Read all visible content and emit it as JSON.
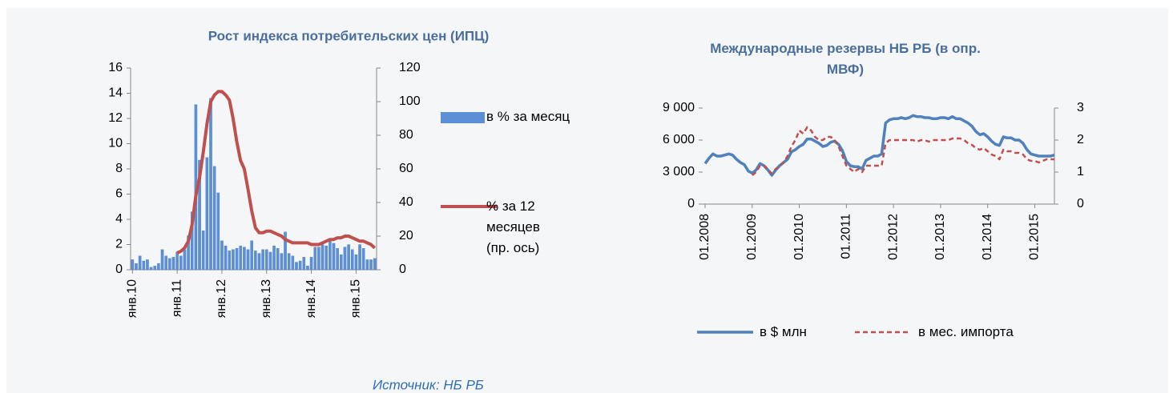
{
  "chart_data": [
    {
      "type": "bar",
      "title": "Рост индекса потребительских цен (ИПЦ)",
      "categories": [
        "янв.10",
        null,
        null,
        null,
        null,
        null,
        null,
        null,
        null,
        null,
        null,
        null,
        "янв.11",
        null,
        null,
        null,
        null,
        null,
        null,
        null,
        null,
        null,
        null,
        null,
        "янв.12",
        null,
        null,
        null,
        null,
        null,
        null,
        null,
        null,
        null,
        null,
        null,
        "янв.13",
        null,
        null,
        null,
        null,
        null,
        null,
        null,
        null,
        null,
        null,
        null,
        "янв.14",
        null,
        null,
        null,
        null,
        null,
        null,
        null,
        null,
        null,
        null,
        null,
        "янв.15",
        null,
        null,
        null,
        null,
        null
      ],
      "series": [
        {
          "name": "в % за месяц",
          "type": "bar",
          "color": "#5b8fd6",
          "values": [
            0.8,
            0.5,
            1.1,
            0.7,
            0.8,
            0.2,
            0.3,
            0.5,
            1.6,
            1.1,
            0.9,
            1.0,
            1.4,
            1.1,
            1.6,
            2.7,
            4.6,
            13.1,
            8.7,
            3.1,
            8.9,
            13.6,
            8.2,
            6.1,
            2.3,
            1.9,
            1.5,
            1.6,
            1.7,
            1.9,
            1.8,
            1.6,
            2.3,
            1.5,
            1.3,
            1.6,
            1.6,
            1.4,
            1.9,
            1.7,
            1.3,
            3.0,
            1.3,
            1.1,
            0.6,
            0.7,
            1.0,
            0.3,
            1.0,
            1.8,
            1.8,
            2.0,
            1.9,
            2.3,
            2.1,
            1.7,
            1.2,
            1.8,
            2.0,
            1.6,
            1.2,
            2.0,
            1.7,
            0.8,
            0.8,
            0.9
          ]
        },
        {
          "name": "% за 12 месяцев (пр. ось)",
          "type": "line",
          "axis": "y2",
          "color": "#c0504d",
          "values": [
            null,
            null,
            null,
            null,
            null,
            null,
            null,
            null,
            null,
            null,
            null,
            null,
            10,
            11,
            13,
            17,
            27,
            44,
            55,
            70,
            87,
            100,
            104,
            106,
            106,
            104,
            101,
            90,
            76,
            65,
            60,
            48,
            35,
            25,
            22,
            22,
            23,
            23,
            22,
            21,
            20,
            18,
            17,
            16,
            16,
            16,
            16,
            16,
            15,
            15,
            15,
            16,
            17,
            18,
            18,
            19,
            19,
            20,
            20,
            19,
            18,
            17,
            17,
            16,
            15,
            13
          ]
        }
      ],
      "ylim": [
        0,
        16
      ],
      "yticks": [
        0,
        2,
        4,
        6,
        8,
        10,
        12,
        14,
        16
      ],
      "y2lim": [
        0,
        120
      ],
      "y2ticks": [
        0,
        20,
        40,
        60,
        80,
        100,
        120
      ],
      "legend": "right"
    },
    {
      "type": "line",
      "title": "Международные резервы НБ РБ (в опр. МВФ)",
      "categories": [
        "01.2008",
        null,
        null,
        null,
        null,
        null,
        null,
        null,
        null,
        null,
        null,
        null,
        "01.2009",
        null,
        null,
        null,
        null,
        null,
        null,
        null,
        null,
        null,
        null,
        null,
        "01.2010",
        null,
        null,
        null,
        null,
        null,
        null,
        null,
        null,
        null,
        null,
        null,
        "01.2011",
        null,
        null,
        null,
        null,
        null,
        null,
        null,
        null,
        null,
        null,
        null,
        "01.2012",
        null,
        null,
        null,
        null,
        null,
        null,
        null,
        null,
        null,
        null,
        null,
        "01.2013",
        null,
        null,
        null,
        null,
        null,
        null,
        null,
        null,
        null,
        null,
        null,
        "01.2014",
        null,
        null,
        null,
        null,
        null,
        null,
        null,
        null,
        null,
        null,
        null,
        "01.2015",
        null,
        null,
        null,
        null,
        null
      ],
      "series": [
        {
          "name": "в $ млн",
          "color": "#4f81bd",
          "values": [
            3800,
            4300,
            4700,
            4500,
            4500,
            4600,
            4700,
            4600,
            4200,
            3900,
            3700,
            3100,
            2900,
            3200,
            3800,
            3600,
            3200,
            2700,
            3200,
            3600,
            3900,
            4200,
            4900,
            5100,
            5400,
            5600,
            6100,
            6100,
            5900,
            5700,
            5400,
            5500,
            5800,
            5900,
            5600,
            5000,
            4000,
            3600,
            3500,
            3500,
            3300,
            4100,
            4300,
            4500,
            4500,
            4700,
            7600,
            7900,
            8000,
            8000,
            8100,
            8000,
            8100,
            8300,
            8200,
            8200,
            8100,
            8100,
            8000,
            8000,
            8100,
            8100,
            8000,
            8200,
            8000,
            8000,
            7800,
            7600,
            7300,
            6800,
            6500,
            6600,
            6300,
            5900,
            5600,
            5500,
            6300,
            6200,
            6200,
            6000,
            6000,
            5700,
            5100,
            4700,
            4600,
            4500,
            4500,
            4500,
            4500,
            4600
          ]
        },
        {
          "name": "в мес. импорта",
          "color": "#c0504d",
          "dashed": true,
          "axis": "y2",
          "values": [
            null,
            null,
            null,
            null,
            null,
            null,
            null,
            null,
            null,
            null,
            null,
            null,
            0.9,
            1.0,
            1.2,
            1.2,
            1.1,
            0.95,
            1.1,
            1.2,
            1.3,
            1.5,
            1.8,
            2.0,
            2.3,
            2.2,
            2.4,
            2.3,
            2.1,
            2.0,
            2.0,
            2.1,
            2.1,
            2.0,
            1.8,
            1.5,
            1.2,
            1.1,
            1.0,
            1.1,
            1.0,
            1.2,
            1.2,
            1.2,
            1.2,
            1.2,
            1.9,
            2.0,
            2.0,
            2.0,
            2.0,
            2.0,
            2.0,
            2.0,
            1.95,
            2.0,
            2.0,
            1.95,
            2.0,
            2.0,
            2.0,
            2.0,
            2.0,
            2.05,
            2.05,
            2.05,
            2.0,
            1.9,
            1.85,
            1.75,
            1.7,
            1.75,
            1.65,
            1.55,
            1.5,
            1.4,
            1.7,
            1.65,
            1.65,
            1.6,
            1.6,
            1.55,
            1.4,
            1.35,
            1.35,
            1.3,
            1.35,
            1.4,
            1.4,
            1.4
          ]
        }
      ],
      "ylim": [
        0,
        9000
      ],
      "yticks": [
        0,
        {
          "value": 3000,
          "label": "3 000"
        },
        {
          "value": 6000,
          "label": "6 000"
        },
        {
          "value": 9000,
          "label": "9 000"
        }
      ],
      "y2lim": [
        0,
        3
      ],
      "y2ticks": [
        0,
        1,
        2,
        3
      ],
      "legend": "bottom"
    }
  ],
  "source": "Источник: НБ РБ"
}
